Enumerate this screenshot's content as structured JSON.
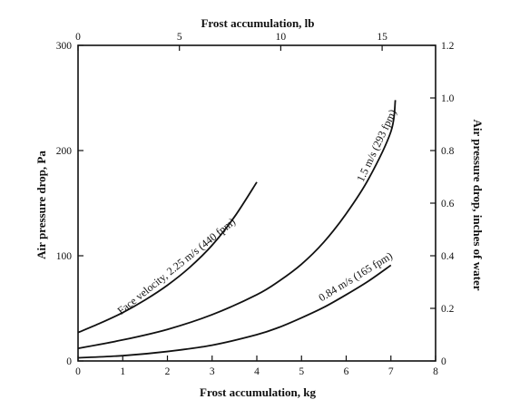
{
  "chart_data": {
    "type": "line",
    "xlabel": "Frost accumulation, kg",
    "x2label": "Frost accumulation, lb",
    "ylabel": "Air pressure drop, Pa",
    "y2label": "Air pressure drop, inches of water",
    "xlim": [
      0,
      8
    ],
    "ylim": [
      0,
      300
    ],
    "x2lim": [
      0,
      17.637
    ],
    "y2lim": [
      0,
      1.2
    ],
    "xticks": [
      "0",
      "1",
      "2",
      "3",
      "4",
      "5",
      "6",
      "7",
      "8"
    ],
    "yticks": [
      "0",
      "100",
      "200",
      "300"
    ],
    "x2ticks": [
      "0",
      "5",
      "10",
      "15"
    ],
    "y2ticks": [
      "0",
      "0.2",
      "0.4",
      "0.6",
      "0.8",
      "1.0",
      "1.2"
    ],
    "grid": false,
    "legend": "none",
    "series": [
      {
        "name": "Face velocity, 2.25 m/s (440 fpm)",
        "x": [
          0,
          0.5,
          1,
          1.5,
          2,
          2.5,
          3,
          3.5,
          4
        ],
        "y": [
          27,
          36,
          46,
          58,
          72,
          89,
          110,
          137,
          170
        ]
      },
      {
        "name": "1.5 m/s (293 fpm)",
        "x": [
          0,
          1,
          2,
          3,
          4,
          4.5,
          5,
          5.5,
          6,
          6.5,
          7,
          7.1
        ],
        "y": [
          12,
          20,
          30,
          44,
          63,
          76,
          92,
          113,
          140,
          173,
          218,
          248
        ]
      },
      {
        "name": "0.84 m/s (165 fpm)",
        "x": [
          0,
          1,
          2,
          3,
          4,
          4.5,
          5,
          5.5,
          6,
          6.5,
          7
        ],
        "y": [
          3,
          5,
          9,
          15,
          25,
          32,
          41,
          51,
          63,
          76,
          91
        ]
      }
    ]
  }
}
